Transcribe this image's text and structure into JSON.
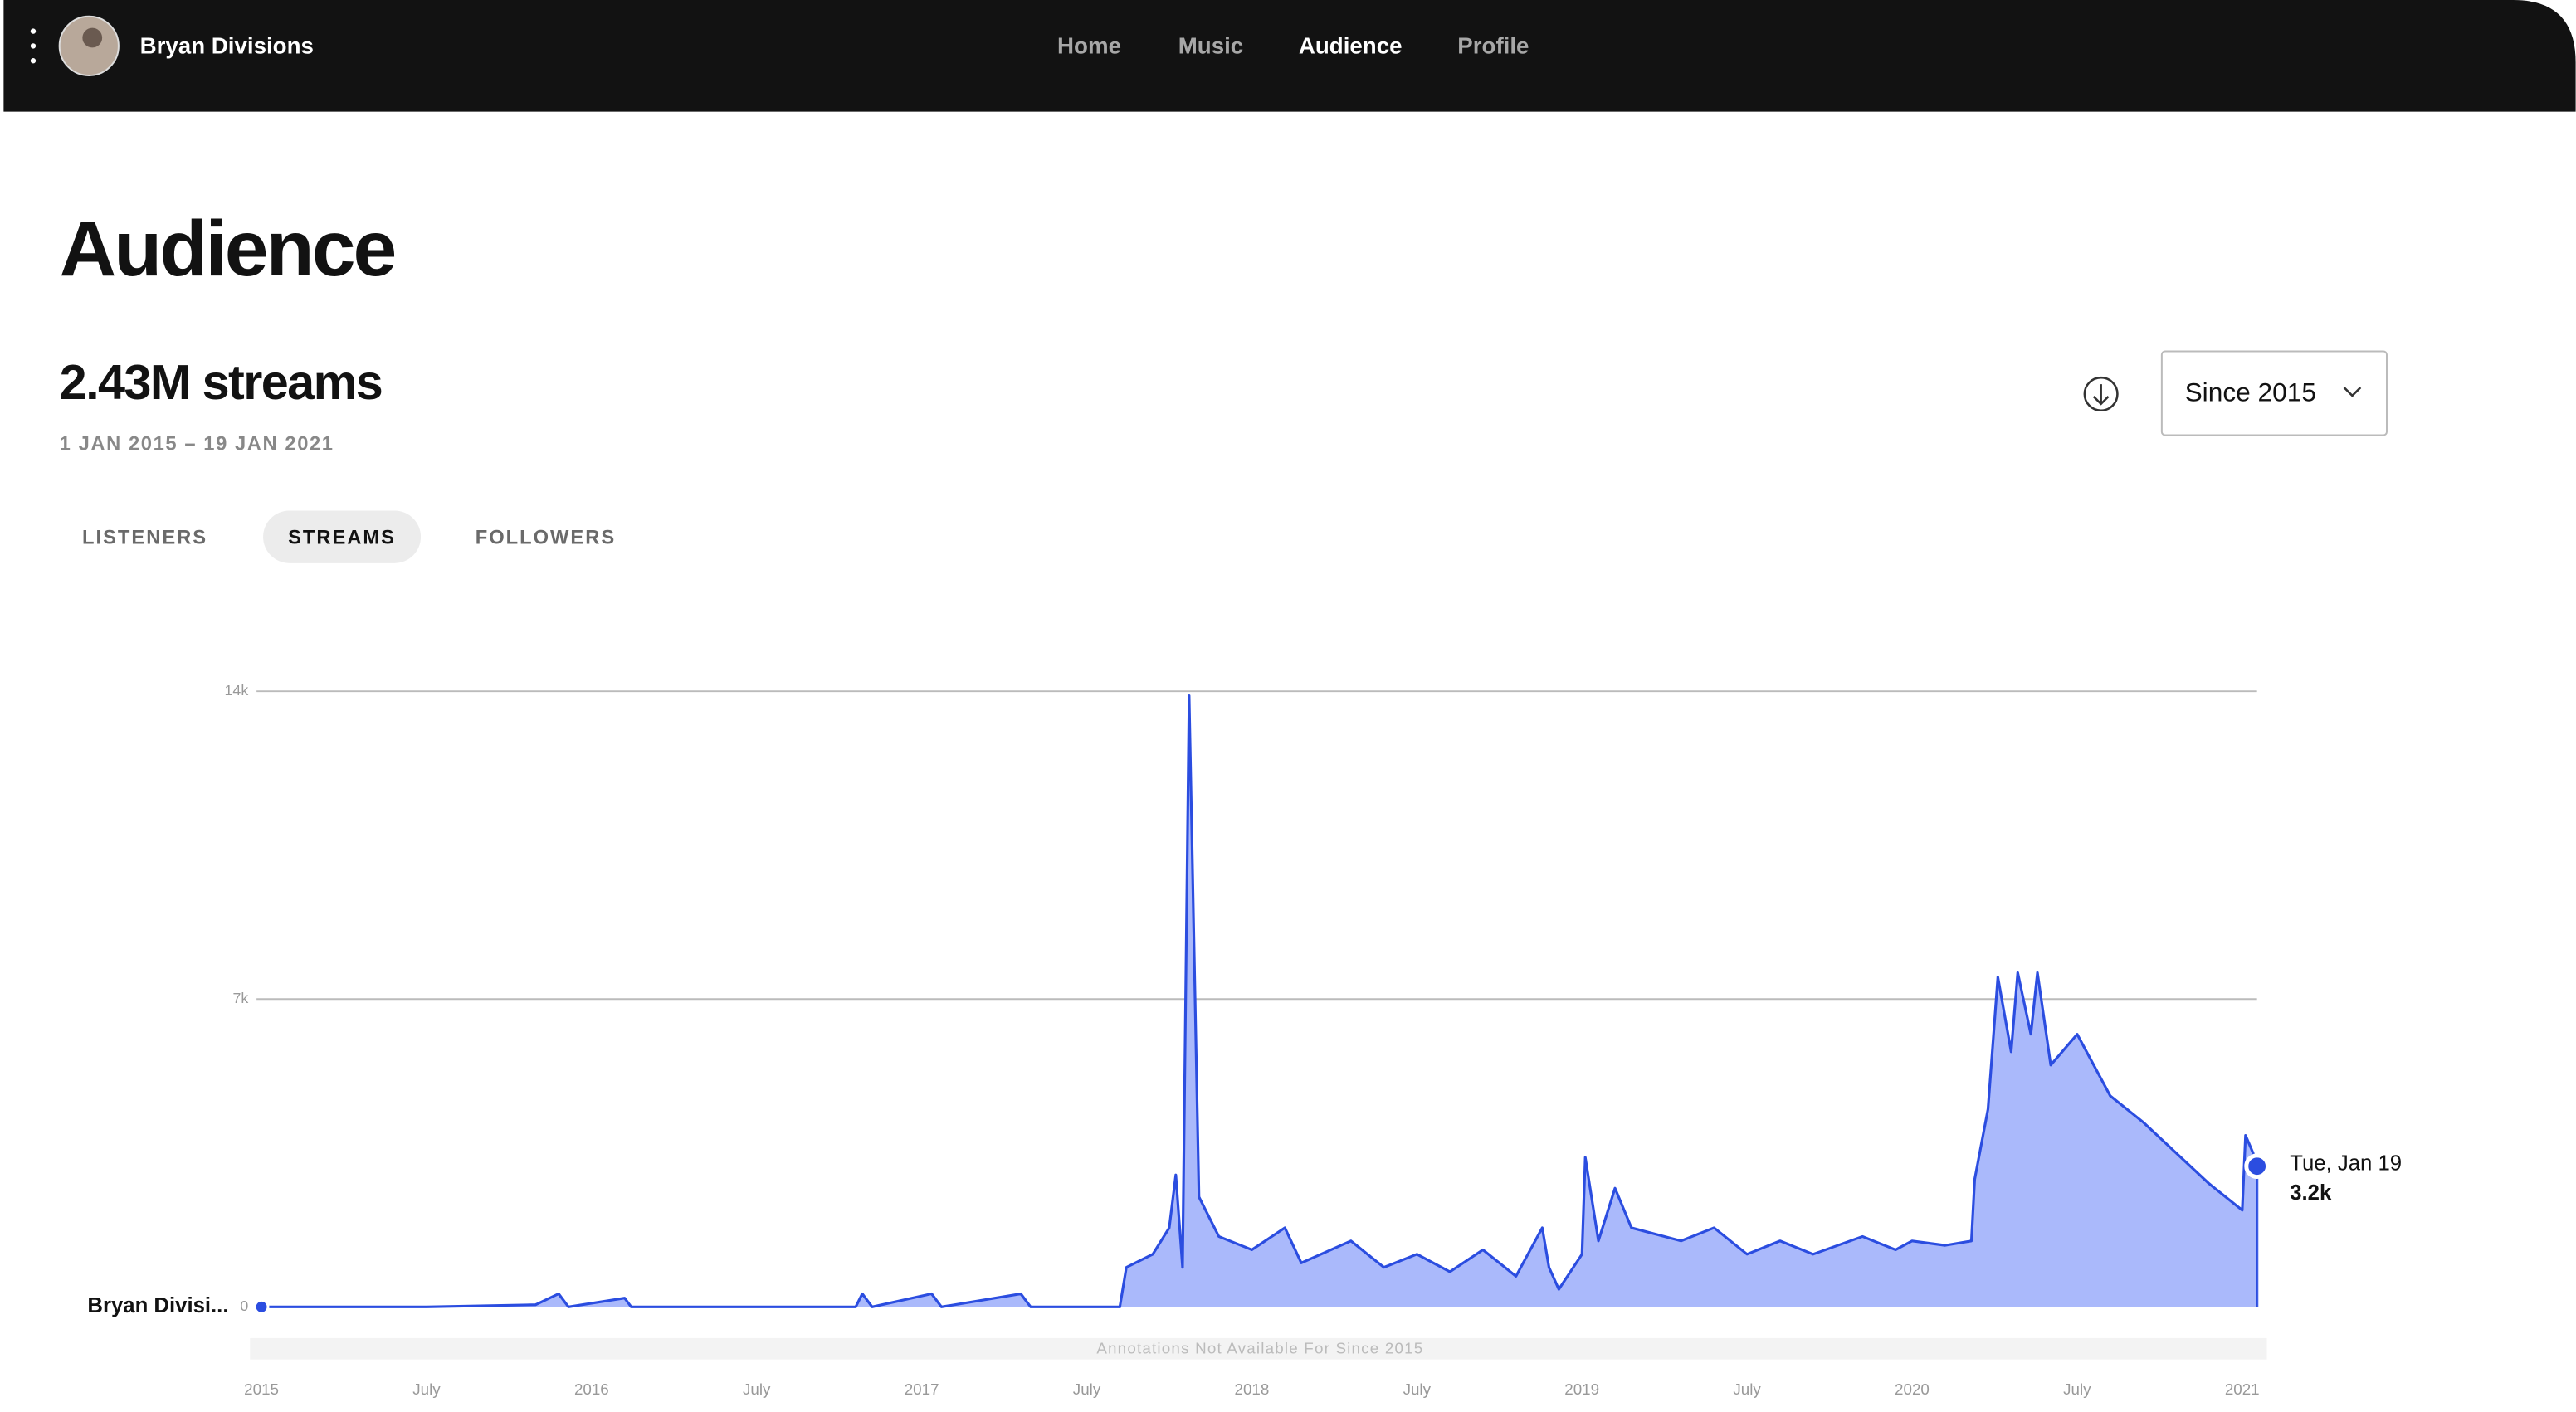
{
  "header": {
    "artist": "Bryan Divisions",
    "nav": [
      "Home",
      "Music",
      "Audience",
      "Profile"
    ],
    "active_nav": "Audience"
  },
  "page": {
    "title": "Audience",
    "total": "2.43M streams",
    "date_range": "1 JAN 2015 – 19 JAN 2021",
    "range_select": "Since 2015",
    "tabs": [
      "LISTENERS",
      "STREAMS",
      "FOLLOWERS"
    ],
    "active_tab": "STREAMS"
  },
  "chart_data": {
    "type": "area",
    "color": "#2b4de0",
    "fill": "#aab9fb",
    "note": "Annotations Not Available For Since 2015",
    "xlim": [
      2015,
      2021.05
    ],
    "ylim": [
      0,
      14000
    ],
    "xticks": [
      {
        "value": 2015,
        "label": "2015"
      },
      {
        "value": 2015.5,
        "label": "July"
      },
      {
        "value": 2016,
        "label": "2016"
      },
      {
        "value": 2016.5,
        "label": "July"
      },
      {
        "value": 2017,
        "label": "2017"
      },
      {
        "value": 2017.5,
        "label": "July"
      },
      {
        "value": 2018,
        "label": "2018"
      },
      {
        "value": 2018.5,
        "label": "July"
      },
      {
        "value": 2019,
        "label": "2019"
      },
      {
        "value": 2019.5,
        "label": "July"
      },
      {
        "value": 2020,
        "label": "2020"
      },
      {
        "value": 2020.5,
        "label": "July"
      },
      {
        "value": 2021,
        "label": "2021"
      }
    ],
    "yticks": [
      0,
      {
        "value": 7000,
        "label": "7k"
      },
      {
        "value": 14000,
        "label": "14k"
      }
    ],
    "grid": true,
    "x": [
      2015.0,
      2015.5,
      2015.83,
      2015.9,
      2015.93,
      2016.1,
      2016.12,
      2016.8,
      2016.82,
      2016.85,
      2017.03,
      2017.06,
      2017.3,
      2017.33,
      2017.6,
      2017.62,
      2017.7,
      2017.75,
      2017.77,
      2017.79,
      2017.81,
      2017.84,
      2017.9,
      2018.0,
      2018.1,
      2018.15,
      2018.3,
      2018.4,
      2018.5,
      2018.6,
      2018.7,
      2018.8,
      2018.88,
      2018.9,
      2018.93,
      2019.0,
      2019.01,
      2019.05,
      2019.1,
      2019.15,
      2019.3,
      2019.4,
      2019.5,
      2019.6,
      2019.7,
      2019.85,
      2019.95,
      2020.0,
      2020.1,
      2020.18,
      2020.19,
      2020.23,
      2020.26,
      2020.3,
      2020.32,
      2020.36,
      2020.38,
      2020.42,
      2020.5,
      2020.6,
      2020.7,
      2020.8,
      2020.9,
      2021.0,
      2021.01,
      2021.05
    ],
    "series": [
      {
        "name": "Bryan Divisi...",
        "values": [
          0,
          0,
          50,
          300,
          0,
          200,
          0,
          0,
          300,
          0,
          300,
          0,
          300,
          0,
          0,
          900,
          1200,
          1800,
          3000,
          900,
          13900,
          2500,
          1600,
          1300,
          1800,
          1000,
          1500,
          900,
          1200,
          800,
          1300,
          700,
          1800,
          900,
          400,
          1200,
          3400,
          1500,
          2700,
          1800,
          1500,
          1800,
          1200,
          1500,
          1200,
          1600,
          1300,
          1500,
          1400,
          1500,
          2900,
          4500,
          7500,
          5800,
          7600,
          6200,
          7600,
          5500,
          6200,
          4800,
          4200,
          3500,
          2800,
          2200,
          3900,
          3200
        ]
      }
    ],
    "highlight": {
      "label": "Tue, Jan 19",
      "value": 3200,
      "value_label": "3.2k"
    }
  }
}
